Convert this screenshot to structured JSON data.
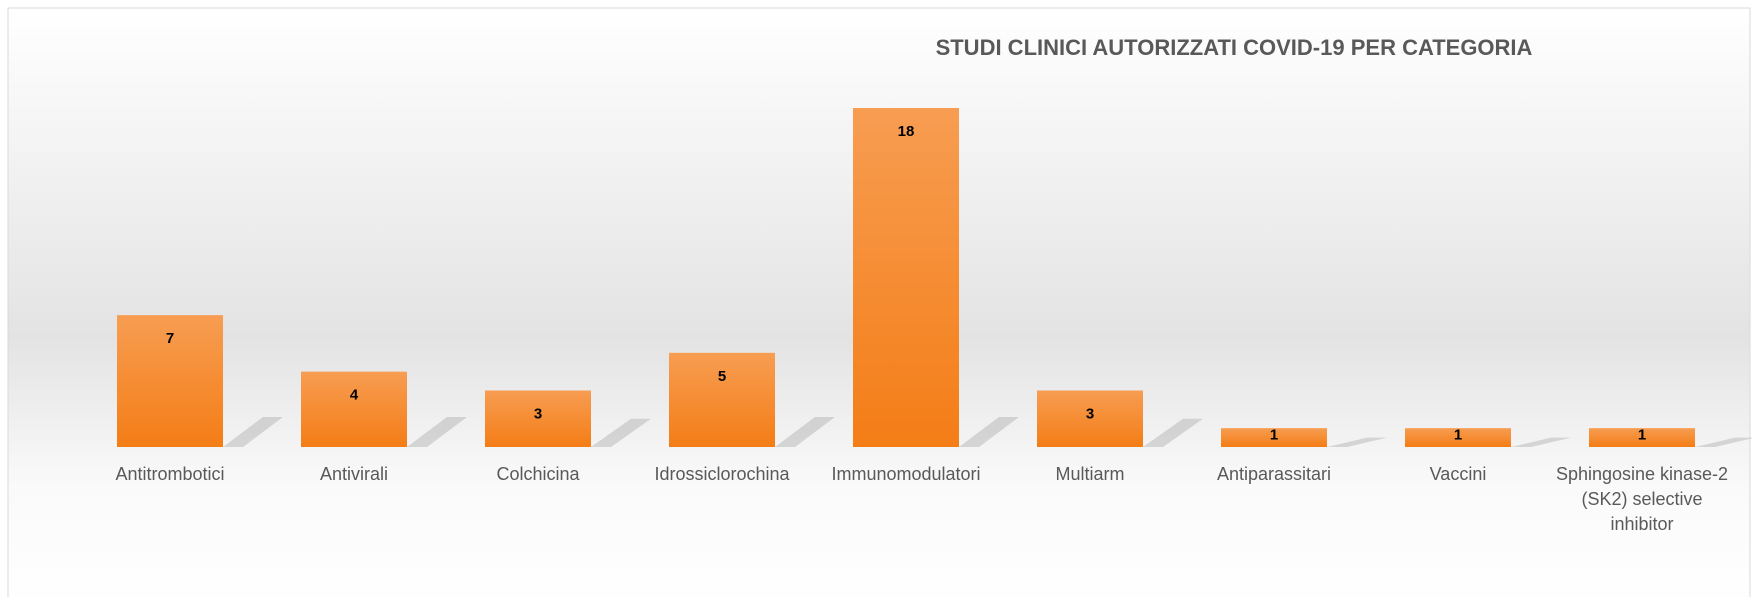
{
  "chart_data": {
    "type": "bar",
    "title": "STUDI CLINICI AUTORIZZATI COVID-19 PER CATEGORIA",
    "categories": [
      "Antitrombotici",
      "Antivirali",
      "Colchicina",
      "Idrossiclorochina",
      "Immunomodulatori",
      "Multiarm",
      "Antiparassitari",
      "Vaccini",
      "Sphingosine kinase-2 (SK2) selective inhibitor"
    ],
    "values": [
      7,
      4,
      3,
      5,
      18,
      3,
      1,
      1,
      1
    ],
    "color": "#f5801f"
  }
}
